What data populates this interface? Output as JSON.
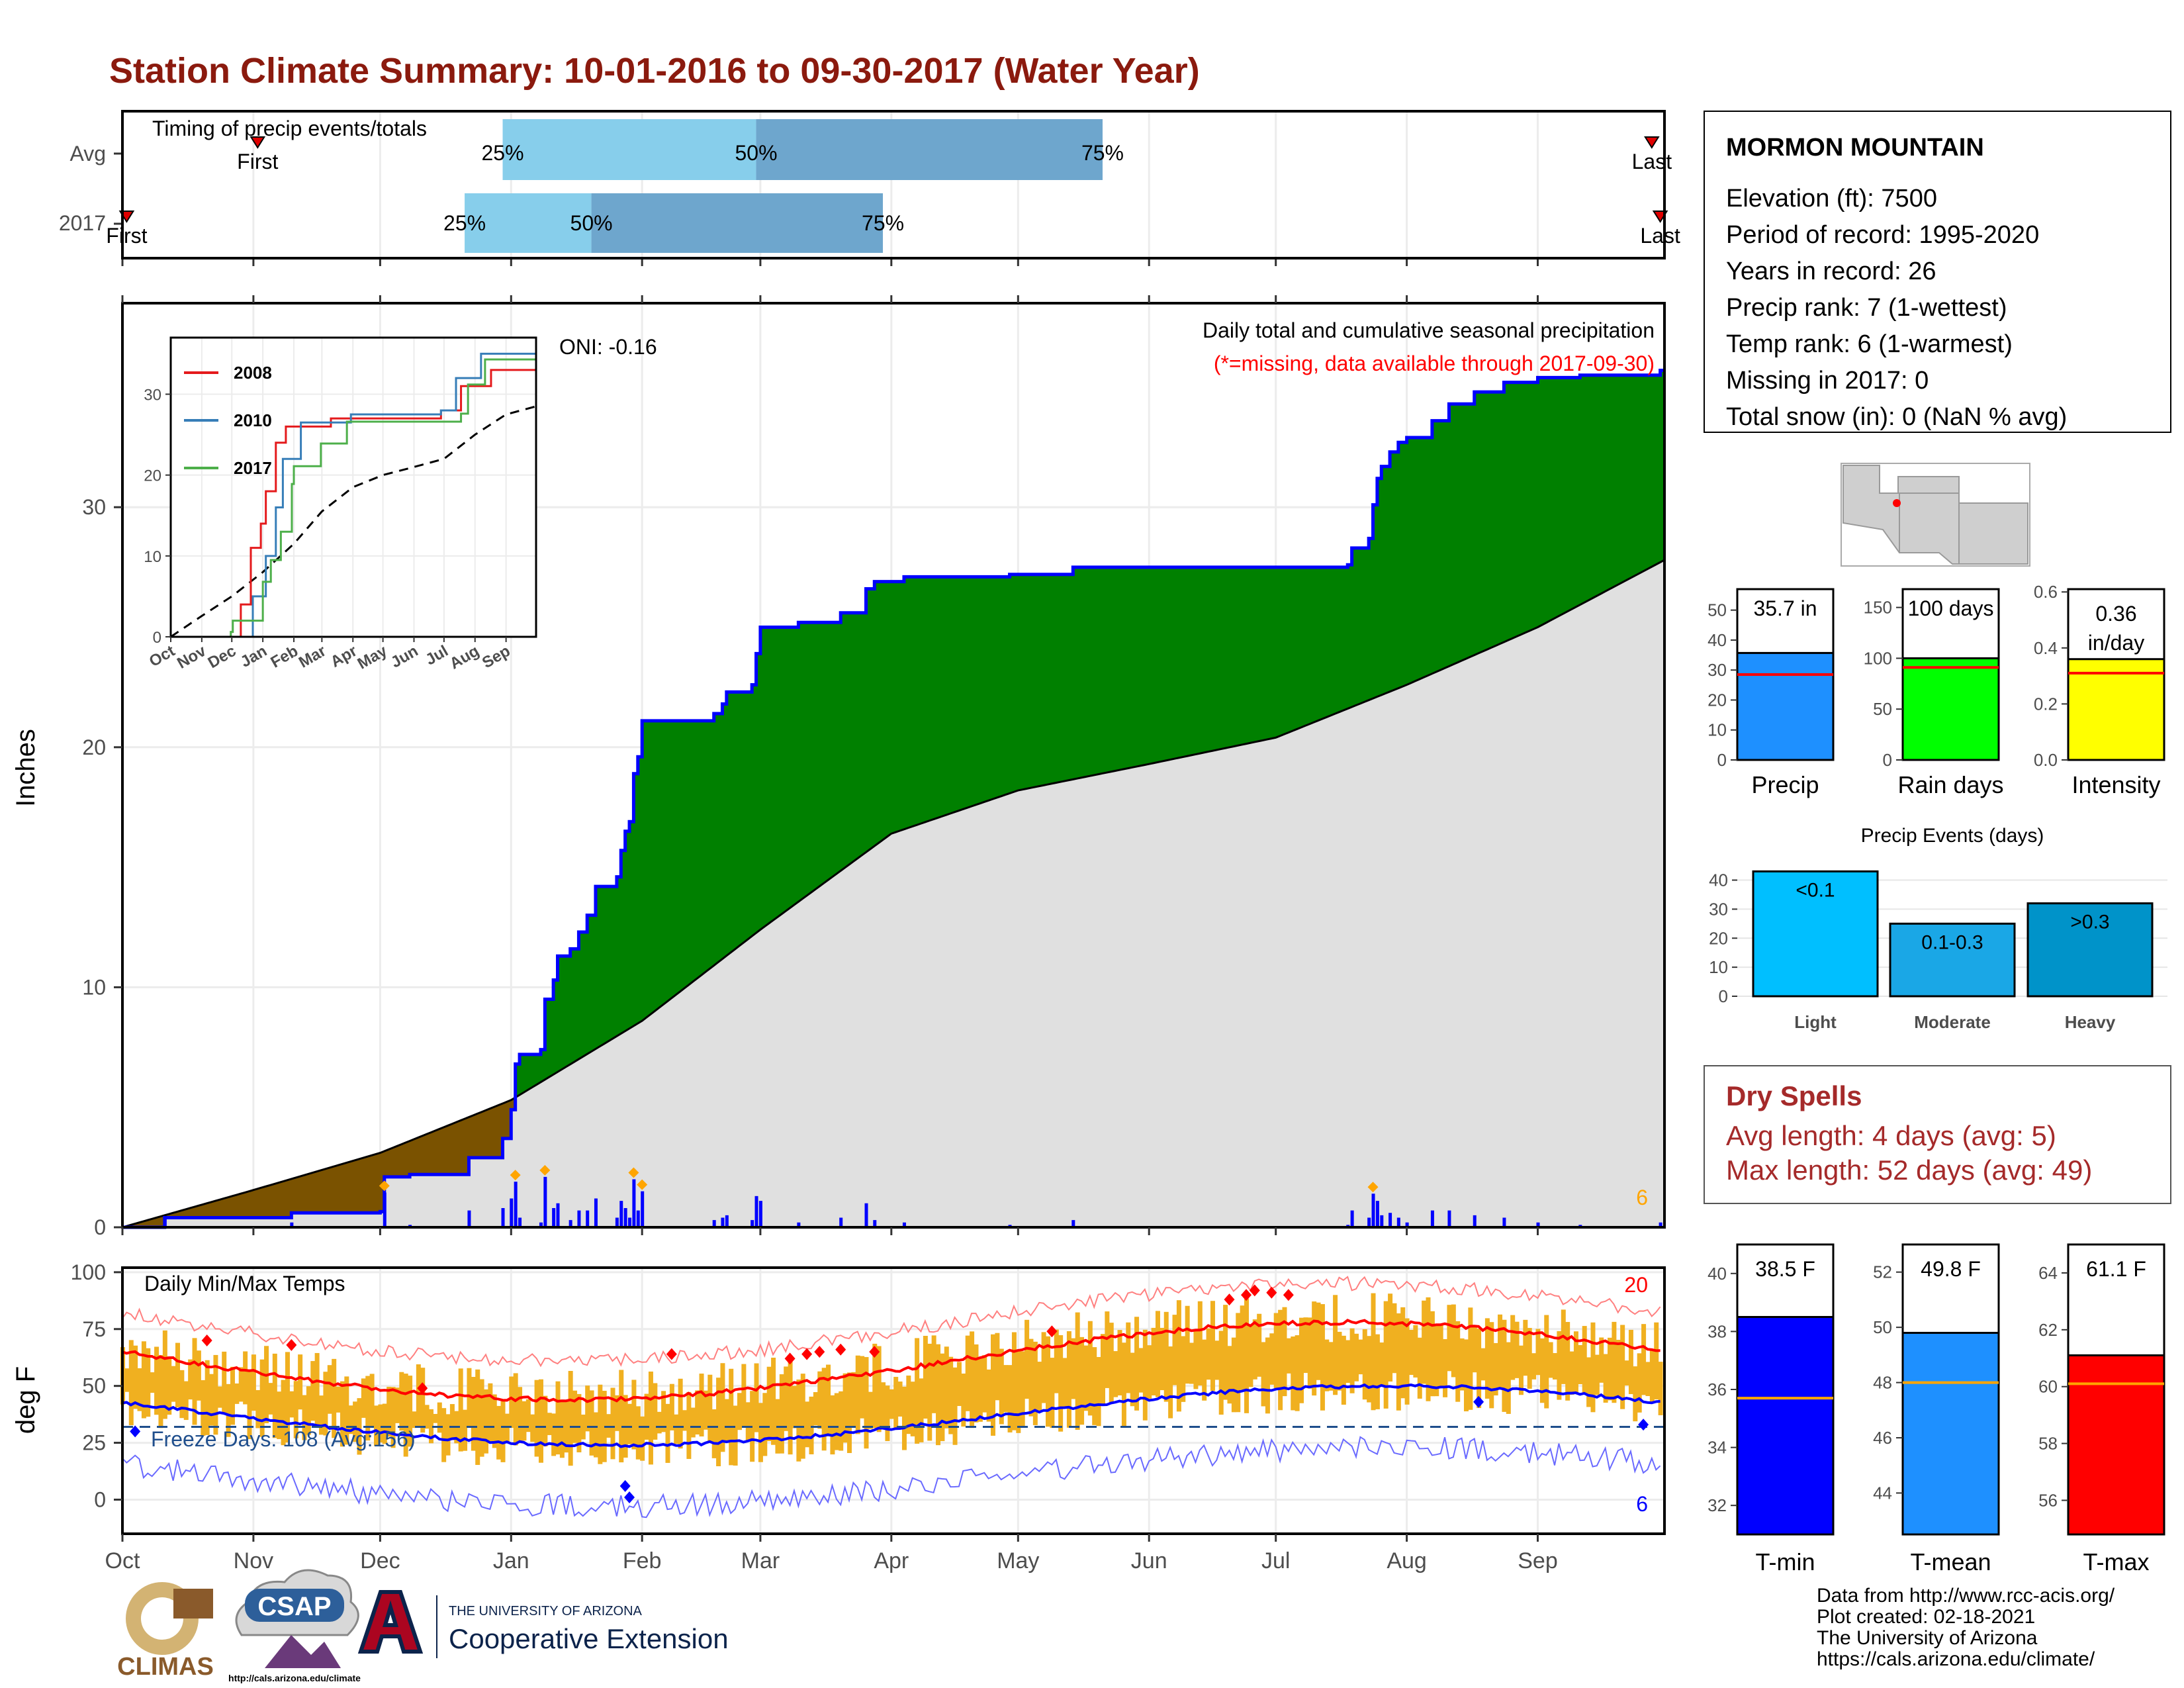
{
  "title": "Station Climate Summary: 10-01-2016 to 09-30-2017 (Water Year)",
  "timing": {
    "label": "Timing of precip events/totals",
    "rows": [
      {
        "name": "Avg",
        "first_label": "First",
        "last_label": "Last",
        "first_day": 32,
        "last_day": 362,
        "p25_day": 90,
        "p50_day": 150,
        "p75_day": 232
      },
      {
        "name": "2017",
        "first_label": "First",
        "last_label": "Last",
        "first_day": 1,
        "last_day": 364,
        "p25_day": 81,
        "p50_day": 111,
        "p75_day": 180
      }
    ],
    "pct_labels": [
      "25%",
      "50%",
      "75%"
    ],
    "colors": {
      "light": "#87ceeb",
      "dark": "#6ea6cd",
      "marker": "#e00000"
    }
  },
  "months": [
    "Oct",
    "Nov",
    "Dec",
    "Jan",
    "Feb",
    "Mar",
    "Apr",
    "May",
    "Jun",
    "Jul",
    "Aug",
    "Sep"
  ],
  "month_start_days": [
    0,
    31,
    61,
    92,
    123,
    151,
    182,
    212,
    243,
    273,
    304,
    335
  ],
  "precip": {
    "ylabel": "Inches",
    "yticks": [
      0,
      10,
      20,
      30
    ],
    "ylim": [
      0,
      38.5
    ],
    "subtitle": "Daily total and cumulative seasonal precipitation",
    "missing_note": "(*=missing, data available through 2017-09-30)",
    "oni": "ONI: -0.16",
    "corner_count": "6",
    "colors": {
      "above": "#008000",
      "below": "#7a5200",
      "avg_fill": "#e0e0e0",
      "obs_line": "#0000ff",
      "bars": "#0000ff",
      "extreme": "#ffa500"
    }
  },
  "inset": {
    "yticks": [
      0,
      10,
      20,
      30
    ],
    "months": [
      "Oct",
      "Nov",
      "Dec",
      "Jan",
      "Feb",
      "Mar",
      "Apr",
      "May",
      "Jun",
      "Jul",
      "Aug",
      "Sep"
    ],
    "legend": [
      {
        "name": "2008",
        "color": "#e41a1c"
      },
      {
        "name": "2010",
        "color": "#377eb8"
      },
      {
        "name": "2017",
        "color": "#4daf4a"
      }
    ]
  },
  "temps": {
    "ylabel": "deg F",
    "yticks": [
      0,
      25,
      50,
      75,
      100
    ],
    "label": "Daily Min/Max Temps",
    "freeze_label": "Freeze Days: 108 (Avg:156)",
    "count_max": "20",
    "count_min": "6",
    "colors": {
      "bars": "#f0b020",
      "avg_max": "#ff0000",
      "avg_min": "#0000ff",
      "rec_max": "#ff8080",
      "rec_min": "#6a6aff",
      "freeze": "#1f4e8c"
    }
  },
  "station": {
    "name": "MORMON MOUNTAIN",
    "lines": [
      "Elevation (ft): 7500",
      "Period of record: 1995-2020",
      "Years in record: 26",
      "Precip rank: 7 (1-wettest)",
      "Temp rank: 6 (1-warmest)",
      "Missing in 2017: 0",
      "Total snow (in): 0 (NaN % avg)"
    ]
  },
  "summary_bars": [
    {
      "name": "Precip",
      "value_label": "35.7 in",
      "value": 35.7,
      "avg": 28.5,
      "ymax": 57,
      "ticks": [
        0,
        10,
        20,
        30,
        40,
        50
      ],
      "color": "#1e90ff"
    },
    {
      "name": "Rain days",
      "value_label": "100 days",
      "value": 100,
      "avg": 91,
      "ymax": 168,
      "ticks": [
        0,
        50,
        100,
        150
      ],
      "color": "#00ff00"
    },
    {
      "name": "Intensity",
      "value_label": "0.36 in/day",
      "value": 0.36,
      "avg": 0.31,
      "ymax": 0.61,
      "ticks": [
        "0.0",
        "0.2",
        "0.4",
        "0.6"
      ],
      "color": "#ffff00"
    }
  ],
  "events": {
    "title": "Precip Events (days)",
    "ticks": [
      0,
      10,
      20,
      30,
      40
    ],
    "ymax": 44,
    "bars": [
      {
        "category": "Light",
        "label": "<0.1",
        "value": 43,
        "color": "#00bfff"
      },
      {
        "category": "Moderate",
        "label": "0.1-0.3",
        "value": 25,
        "color": "#1aa7e6"
      },
      {
        "category": "Heavy",
        "label": ">0.3",
        "value": 32,
        "color": "#0093c9"
      }
    ]
  },
  "dry_spells": {
    "title": "Dry Spells",
    "avg_line": "Avg length: 4 days (avg: 5)",
    "max_line": "Max length: 52 days (avg: 49)"
  },
  "temp_bars": [
    {
      "name": "T-min",
      "value_label": "38.5 F",
      "value": 38.5,
      "avg": 35.7,
      "ymin": 31,
      "ymax": 41,
      "ticks": [
        32,
        34,
        36,
        38,
        40
      ],
      "color": "#0000ff"
    },
    {
      "name": "T-mean",
      "value_label": "49.8 F",
      "value": 49.8,
      "avg": 48.0,
      "ymin": 42.5,
      "ymax": 53,
      "ticks": [
        44,
        46,
        48,
        50,
        52
      ],
      "color": "#1e90ff"
    },
    {
      "name": "T-max",
      "value_label": "61.1 F",
      "value": 61.1,
      "avg": 60.1,
      "ymin": 54.8,
      "ymax": 65,
      "ticks": [
        56,
        58,
        60,
        62,
        64
      ],
      "color": "#ff0000"
    }
  ],
  "footer": {
    "lines": [
      "Data from http://www.rcc-acis.org/",
      "Plot created: 02-18-2021",
      "The University of Arizona",
      "https://cals.arizona.edu/climate/"
    ],
    "climas": "CLIMAS",
    "csap": "CSAP",
    "csap_url": "http://cals.arizona.edu/climate",
    "ua_small": "THE UNIVERSITY OF ARIZONA",
    "ua_big": "Cooperative Extension"
  }
}
